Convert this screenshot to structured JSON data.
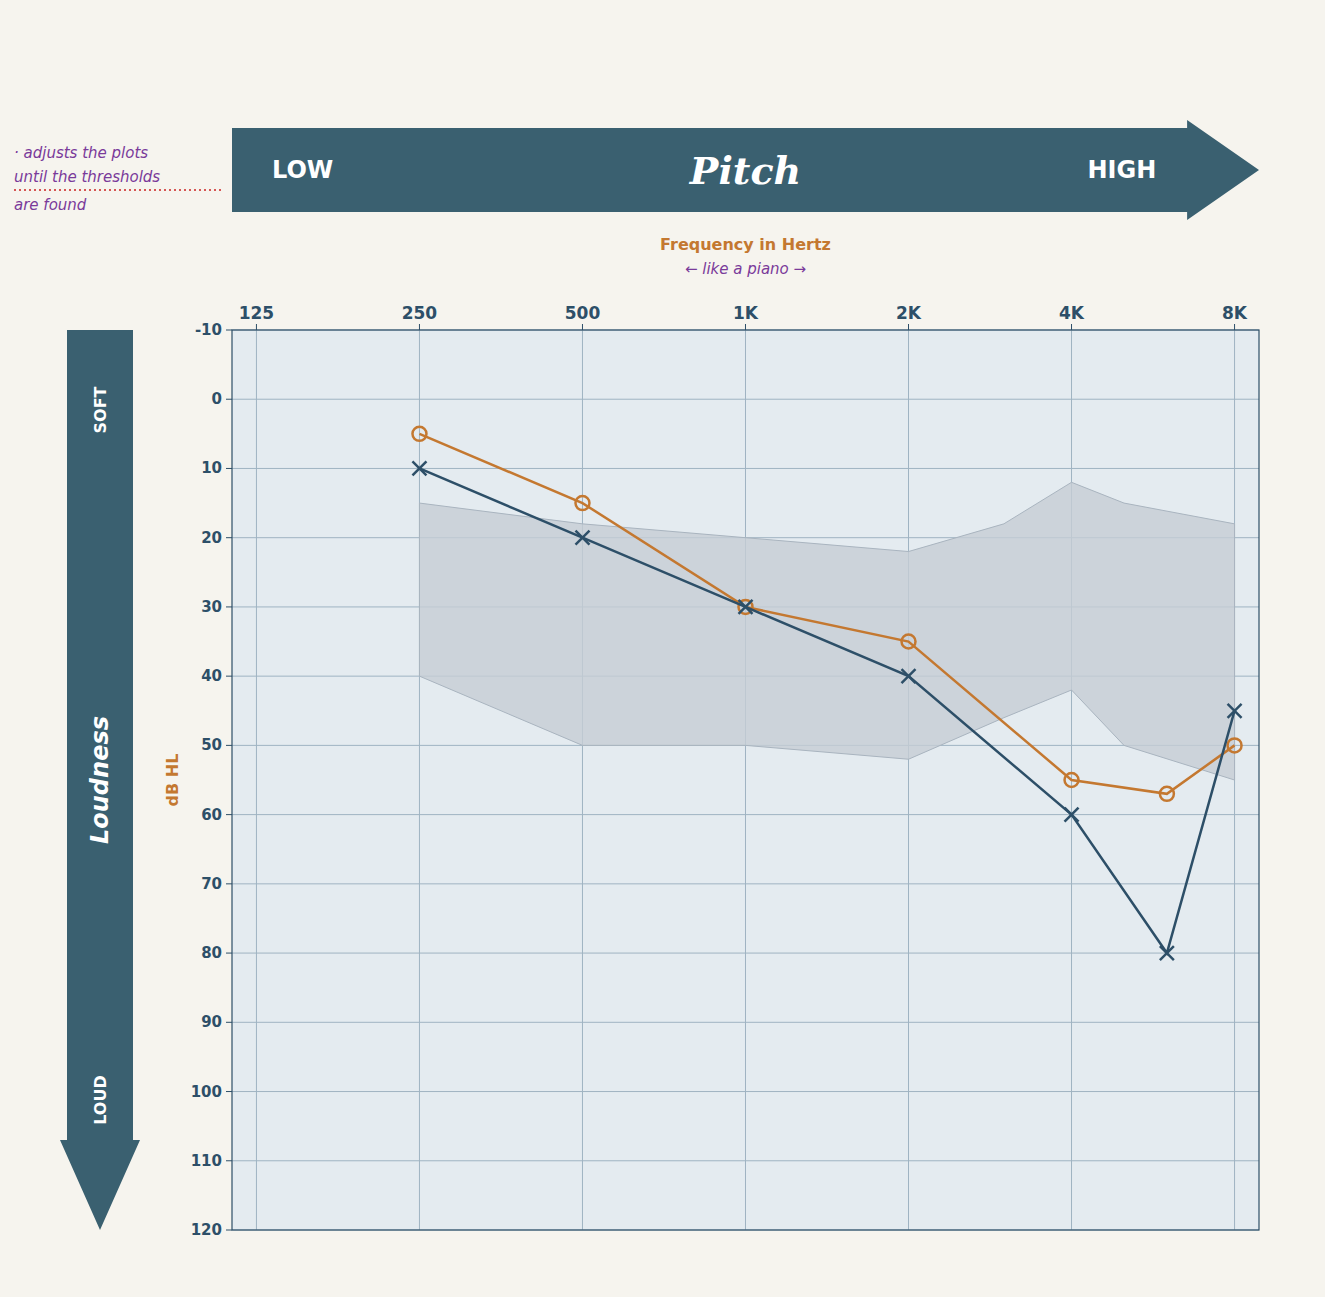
{
  "chart_data": {
    "type": "line",
    "title": "Pitch",
    "x_label": "Frequency in Hertz",
    "y_label": "dB HL",
    "annotations": [
      "LOW",
      "HIGH",
      "← like a piano →",
      "Loudness",
      "SOFT",
      "LOUD",
      "· adjusts the plots",
      "until the thresholds",
      "are found"
    ],
    "x": [
      250,
      500,
      1000,
      2000,
      4000,
      6000,
      8000
    ],
    "series": [
      {
        "color": "#c47830",
        "marker": "circle",
        "values": [
          5,
          15,
          30,
          35,
          55,
          57,
          50
        ]
      },
      {
        "color": "#2d4f68",
        "marker": "x",
        "values": [
          10,
          20,
          30,
          40,
          60,
          80,
          45
        ]
      }
    ],
    "bands": [
      {
        "color": "#c5cdd5",
        "x": [
          250,
          500,
          1000,
          2000,
          3000,
          4000,
          5000,
          8000
        ],
        "upper": [
          15,
          18,
          20,
          22,
          18,
          12,
          15,
          18
        ],
        "lower": [
          40,
          50,
          50,
          52,
          46,
          42,
          50,
          55
        ]
      }
    ],
    "log": "x",
    "xlim": [
      112.66,
      8876.55
    ],
    "xticks": [
      125,
      250,
      500,
      {
        "value": 1000,
        "label": "1K"
      },
      {
        "value": 2000,
        "label": "2K"
      },
      {
        "value": 4000,
        "label": "4K"
      },
      {
        "value": 8000,
        "label": "8K"
      }
    ],
    "ylim": [
      120,
      -10
    ],
    "yticks": [
      -10,
      0,
      10,
      20,
      30,
      40,
      50,
      60,
      70,
      80,
      90,
      100,
      110,
      120
    ],
    "grid": true
  }
}
